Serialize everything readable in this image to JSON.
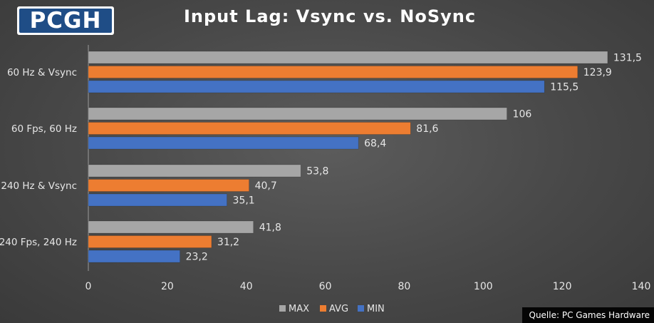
{
  "logo": {
    "text": "PCGH"
  },
  "source": "Quelle: PC Games Hardware",
  "colors": {
    "MAX": "#a6a6a6",
    "AVG": "#ed7d31",
    "MIN": "#4472c4"
  },
  "chart_data": {
    "type": "bar",
    "orientation": "horizontal",
    "title": "Input Lag: Vsync vs. NoSync",
    "xlabel": "",
    "ylabel": "",
    "xlim": [
      0,
      140
    ],
    "ticks": [
      0,
      20,
      40,
      60,
      80,
      100,
      120,
      140
    ],
    "categories": [
      "60 Hz & Vsync",
      "60 Fps, 60 Hz",
      "240 Hz & Vsync",
      "240 Fps, 240 Hz"
    ],
    "series": [
      {
        "name": "MAX",
        "values": [
          131.5,
          106,
          53.8,
          41.8
        ],
        "labels": [
          "131,5",
          "106",
          "53,8",
          "41,8"
        ]
      },
      {
        "name": "AVG",
        "values": [
          123.9,
          81.6,
          40.7,
          31.2
        ],
        "labels": [
          "123,9",
          "81,6",
          "40,7",
          "31,2"
        ]
      },
      {
        "name": "MIN",
        "values": [
          115.5,
          68.4,
          35.1,
          23.2
        ],
        "labels": [
          "115,5",
          "68,4",
          "35,1",
          "23,2"
        ]
      }
    ],
    "legend_position": "bottom-center",
    "grid": false
  }
}
